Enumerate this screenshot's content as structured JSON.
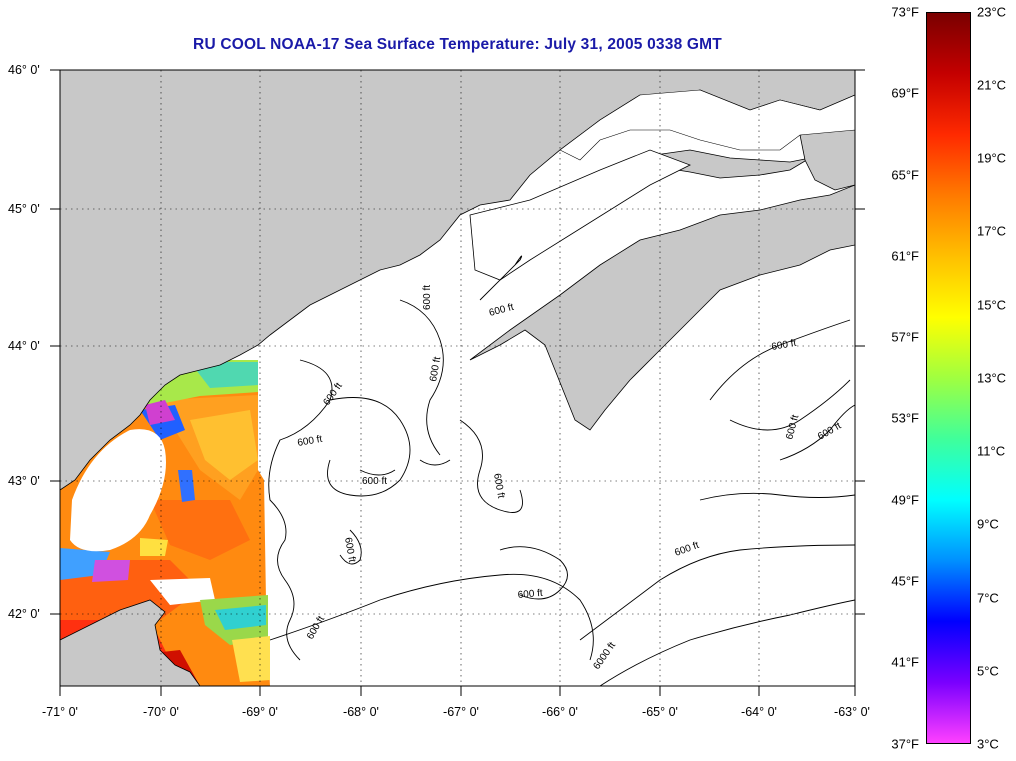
{
  "title": "RU COOL  NOAA-17  Sea Surface Temperature:  July 31, 2005 0338 GMT",
  "longitude_labels": [
    "-71° 0'",
    "-70° 0'",
    "-69° 0'",
    "-68° 0'",
    "-67° 0'",
    "-66° 0'",
    "-65° 0'",
    "-64° 0'",
    "-63° 0'"
  ],
  "latitude_labels": [
    "46° 0'",
    "45° 0'",
    "44° 0'",
    "43° 0'",
    "42° 0'"
  ],
  "colorbar": {
    "fahrenheit_labels": [
      "73°F",
      "69°F",
      "65°F",
      "61°F",
      "57°F",
      "53°F",
      "49°F",
      "45°F",
      "41°F",
      "37°F"
    ],
    "celsius_labels": [
      "23°C",
      "21°C",
      "19°C",
      "17°C",
      "15°C",
      "13°C",
      "11°C",
      "9°C",
      "7°C",
      "5°C",
      "3°C"
    ],
    "colors_top_to_bottom": [
      "#7a0000",
      "#c40000",
      "#ff2a00",
      "#ff7a00",
      "#ffbf00",
      "#ffff00",
      "#a0ff40",
      "#40ff9a",
      "#00ffff",
      "#0090ff",
      "#0000ff",
      "#7a00ff",
      "#ff40ff"
    ]
  },
  "contour_labels": [
    "600 ft",
    "600 ft",
    "600 ft",
    "600 ft",
    "600 ft",
    "600 ft",
    "600 ft",
    "600 ft",
    "600 ft",
    "600 ft",
    "600 ft",
    "600 ft",
    "600 ft",
    "600 ft",
    "6000 ft"
  ],
  "colors": {
    "land": "#c8c8c8",
    "ocean_no_data": "#ffffff",
    "title": "#1a1aa8"
  }
}
